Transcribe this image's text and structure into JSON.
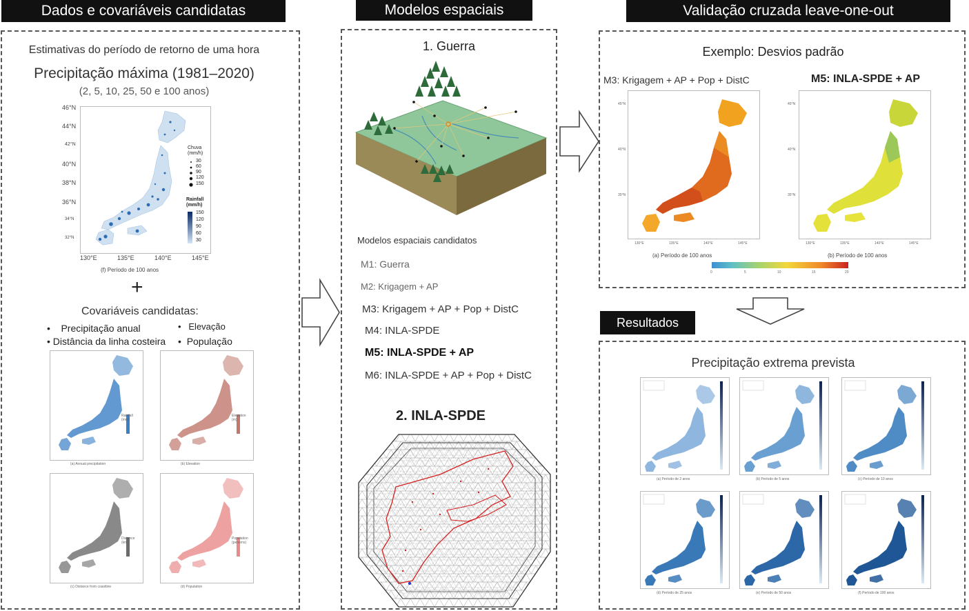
{
  "headers": {
    "left": "Dados e covariáveis candidatas",
    "middle": "Modelos espaciais",
    "right": "Validação cruzada leave-one-out",
    "results": "Resultados"
  },
  "left_panel": {
    "subtitle": "Estimativas do período de retorno de uma hora",
    "title": "Precipitação máxima (1981–2020)",
    "periods": "(2, 5, 10, 25, 50 e 100 anos)",
    "map": {
      "lat_ticks": [
        "46°N",
        "44°N",
        "42°N",
        "40°N",
        "38°N",
        "36°N",
        "34°N",
        "32°N"
      ],
      "lon_ticks": [
        "130°E",
        "135°E",
        "140°E",
        "145°E"
      ],
      "legend_points_title": "Chuva (mm/h)",
      "legend_points": [
        "30",
        "60",
        "90",
        "120",
        "150"
      ],
      "legend_bar_title": "Rainfall (mm/h)",
      "legend_bar": [
        "150",
        "120",
        "90",
        "60",
        "30"
      ],
      "caption": "(f) Período de 100 anos"
    },
    "plus": "+",
    "covariates_title": "Covariáveis candidatas:",
    "covariates": {
      "annual": "Precipitação anual",
      "elevation": "Elevação",
      "coast": "Distância da linha costeira",
      "population": "População"
    },
    "small_maps": [
      {
        "caption": "(a) Annual precipitation",
        "legend": "Rainfall (mm)",
        "color": "#3b7fc4"
      },
      {
        "caption": "(b) Elevation",
        "legend": "Elevation (m)",
        "color": "#c0786e"
      },
      {
        "caption": "(c) Distance from coastline",
        "legend": "Distance (km)",
        "color": "#6b6b6b"
      },
      {
        "caption": "(d) Population",
        "legend": "Population (persons)",
        "color": "#e88a8a"
      }
    ]
  },
  "middle_panel": {
    "guerra_title": "1. Guerra",
    "candidates_title": "Modelos espaciais candidatos",
    "models": [
      {
        "label": "M1: Guerra",
        "bold": false
      },
      {
        "label": "M2: Krigagem + AP",
        "bold": false
      },
      {
        "label": "M3: Krigagem + AP + Pop + DistC",
        "bold": false
      },
      {
        "label": "M4: INLA-SPDE",
        "bold": false
      },
      {
        "label": "M5: INLA-SPDE + AP",
        "bold": true
      },
      {
        "label": "M6: INLA-SPDE + AP + Pop + DistC",
        "bold": false
      }
    ],
    "inla_title": "2. INLA-SPDE"
  },
  "right_panel": {
    "example_title": "Exemplo: Desvios padrão",
    "m3_label": "M3: Krigagem + AP + Pop + DistC",
    "m5_label": "M5: INLA-SPDE + AP",
    "caption_a": "(a) Período de 100 anos",
    "caption_b": "(b) Período de 100 anos",
    "lat_ticks": [
      "45°N",
      "40°N",
      "35°N"
    ],
    "lon_ticks": [
      "130°E",
      "135°E",
      "140°E",
      "145°E"
    ],
    "colorbar_ticks": [
      "0",
      "5",
      "10",
      "15",
      "20"
    ]
  },
  "results_panel": {
    "title": "Precipitação extrema prevista",
    "maps": [
      {
        "caption": "(a) Período de 2 anos",
        "color": "#8fb6de"
      },
      {
        "caption": "(b) Período de 5 anos",
        "color": "#6a9fd2"
      },
      {
        "caption": "(c) Período de 10 anos",
        "color": "#4f8cc6"
      },
      {
        "caption": "(d) Período de 25 anos",
        "color": "#3a79b8"
      },
      {
        "caption": "(e) Período de 50 anos",
        "color": "#2c68a8"
      },
      {
        "caption": "(f) Período de 100 anos",
        "color": "#1f5796"
      }
    ]
  },
  "colors": {
    "header_bg": "#111111",
    "rain_blue": "#2e6db4",
    "mesh_red": "#d62020",
    "terrain_green": "#8fc79a"
  }
}
